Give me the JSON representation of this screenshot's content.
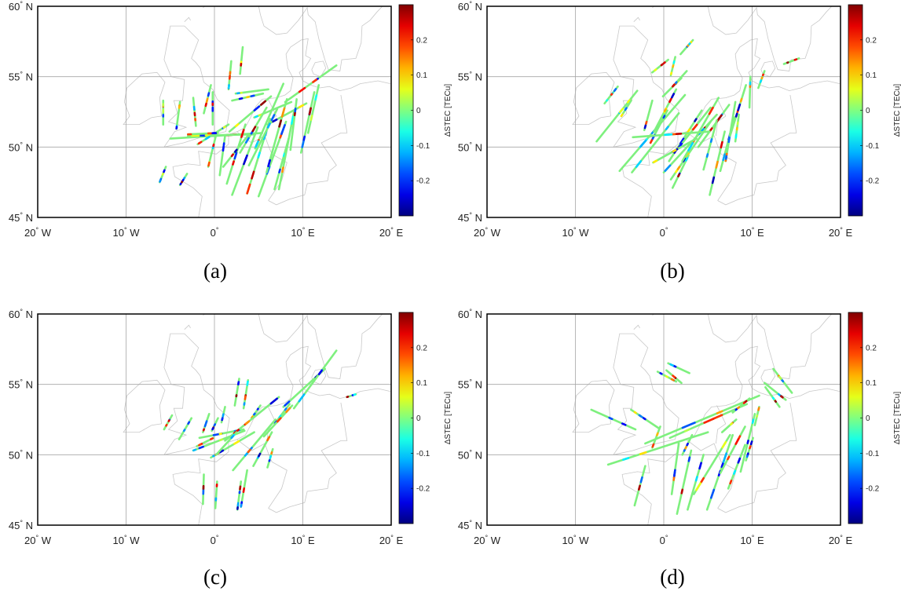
{
  "figure": {
    "x_ticks": [
      {
        "value": -20,
        "label": "20",
        "suffix": "W"
      },
      {
        "value": -10,
        "label": "10",
        "suffix": "W"
      },
      {
        "value": 0,
        "label": "0",
        "suffix": ""
      },
      {
        "value": 10,
        "label": "10",
        "suffix": "E"
      },
      {
        "value": 20,
        "label": "20",
        "suffix": "E"
      }
    ],
    "y_ticks": [
      {
        "value": 45,
        "label": "45",
        "suffix": "N"
      },
      {
        "value": 50,
        "label": "50",
        "suffix": "N"
      },
      {
        "value": 55,
        "label": "55",
        "suffix": "N"
      },
      {
        "value": 60,
        "label": "60",
        "suffix": "N"
      }
    ],
    "degree_symbol": "°",
    "lon_range": [
      -20,
      20
    ],
    "lat_range": [
      45,
      60
    ],
    "colorbar": {
      "label": "ΔSTEC [TECu]",
      "range": [
        -0.3,
        0.3
      ],
      "ticks": [
        {
          "value": 0.2,
          "label": "0.2"
        },
        {
          "value": 0.1,
          "label": "0.1"
        },
        {
          "value": 0,
          "label": "0"
        },
        {
          "value": -0.1,
          "label": "-0.1"
        },
        {
          "value": -0.2,
          "label": "-0.2"
        }
      ],
      "colormap": "jet"
    },
    "colors": {
      "track_base": "#7ef07e",
      "coastline": "#c8c8c8",
      "grid": "#a6a6a6",
      "frame": "#000000"
    }
  },
  "panels": [
    {
      "id": "a",
      "caption": "(a)",
      "tracks": [
        [
          -6.2,
          47.5,
          -5.5,
          48.6
        ],
        [
          -3.9,
          47.3,
          -3.1,
          48.1
        ],
        [
          -5.8,
          51.6,
          -5.8,
          53.3
        ],
        [
          -4.3,
          51.3,
          -3.9,
          53.2
        ],
        [
          -2.1,
          51.5,
          -2.4,
          53.5
        ],
        [
          -1.2,
          52.4,
          -0.4,
          54.4
        ],
        [
          -0.2,
          51.6,
          -0.2,
          53.9
        ],
        [
          1.6,
          54.1,
          1.9,
          56.1
        ],
        [
          2.9,
          55.2,
          3.2,
          57.1
        ],
        [
          -5.0,
          50.6,
          5.4,
          51.0
        ],
        [
          -3.0,
          50.8,
          4.6,
          50.9
        ],
        [
          2.4,
          53.8,
          6.1,
          54.1
        ],
        [
          2.0,
          53.3,
          5.5,
          53.8
        ],
        [
          4.5,
          52.1,
          8.7,
          53.2
        ],
        [
          8.0,
          53.2,
          13.8,
          55.8
        ],
        [
          6.0,
          51.6,
          10.4,
          53.1
        ],
        [
          -1.9,
          50.2,
          1.6,
          51.6
        ],
        [
          0.6,
          48.0,
          1.2,
          50.8
        ],
        [
          -0.7,
          48.6,
          0.2,
          50.9
        ],
        [
          1.4,
          47.4,
          3.5,
          51.6
        ],
        [
          2.0,
          46.6,
          4.9,
          51.4
        ],
        [
          3.7,
          46.7,
          6.3,
          52.0
        ],
        [
          5.0,
          46.5,
          8.1,
          51.8
        ],
        [
          6.8,
          47.0,
          8.4,
          50.6
        ],
        [
          4.6,
          49.9,
          7.8,
          54.5
        ],
        [
          5.9,
          48.2,
          8.2,
          53.4
        ],
        [
          7.3,
          47.0,
          9.0,
          52.5
        ],
        [
          8.6,
          49.8,
          9.3,
          53.4
        ],
        [
          9.8,
          49.6,
          11.3,
          53.9
        ],
        [
          10.6,
          51.0,
          11.8,
          54.4
        ],
        [
          2.9,
          49.6,
          5.9,
          52.8
        ],
        [
          3.9,
          48.7,
          7.1,
          52.7
        ],
        [
          1.7,
          51.1,
          6.4,
          53.6
        ],
        [
          -3.0,
          50.9,
          0.4,
          51.0
        ],
        [
          1.0,
          48.6,
          3.9,
          50.9
        ]
      ]
    },
    {
      "id": "b",
      "caption": "(b)",
      "tracks": [
        [
          -7.6,
          50.4,
          -3.0,
          54.0
        ],
        [
          -5.0,
          48.3,
          2.4,
          53.7
        ],
        [
          -3.6,
          48.2,
          1.7,
          52.4
        ],
        [
          0.0,
          48.2,
          6.0,
          52.3
        ],
        [
          0.6,
          49.0,
          4.3,
          52.6
        ],
        [
          1.6,
          49.9,
          5.3,
          52.8
        ],
        [
          0.8,
          47.7,
          5.3,
          51.8
        ],
        [
          -1.5,
          50.3,
          0.4,
          52.6
        ],
        [
          -2.2,
          51.2,
          -1.3,
          53.3
        ],
        [
          -6.7,
          53.1,
          -5.2,
          54.3
        ],
        [
          -4.8,
          52.2,
          -3.7,
          53.3
        ],
        [
          -1.1,
          51.1,
          1.4,
          54.1
        ],
        [
          -0.1,
          53.6,
          2.0,
          54.9
        ],
        [
          -1.3,
          55.3,
          0.5,
          56.2
        ],
        [
          0.8,
          55.1,
          1.3,
          56.4
        ],
        [
          1.9,
          56.6,
          3.3,
          57.6
        ],
        [
          1.0,
          54.3,
          2.6,
          55.4
        ],
        [
          2.1,
          49.0,
          6.2,
          53.5
        ],
        [
          3.9,
          50.0,
          7.4,
          53.0
        ],
        [
          4.5,
          48.4,
          6.0,
          51.9
        ],
        [
          5.2,
          46.6,
          6.9,
          51.1
        ],
        [
          6.4,
          48.3,
          8.0,
          52.1
        ],
        [
          7.0,
          49.0,
          8.1,
          53.2
        ],
        [
          7.5,
          50.8,
          9.3,
          54.4
        ],
        [
          8.1,
          50.4,
          8.5,
          52.3
        ],
        [
          9.7,
          52.8,
          9.8,
          55.0
        ],
        [
          10.7,
          54.2,
          11.4,
          55.4
        ],
        [
          13.6,
          55.9,
          15.3,
          56.3
        ],
        [
          -3.5,
          50.7,
          5.2,
          51.1
        ],
        [
          -1.2,
          48.9,
          3.7,
          50.6
        ],
        [
          1.0,
          47.1,
          2.8,
          49.4
        ]
      ]
    },
    {
      "id": "c",
      "caption": "(c)",
      "tracks": [
        [
          -5.7,
          51.8,
          -4.8,
          52.8
        ],
        [
          -4.0,
          51.1,
          -2.6,
          52.6
        ],
        [
          -1.3,
          51.6,
          -0.6,
          52.9
        ],
        [
          -0.3,
          51.7,
          0.4,
          52.6
        ],
        [
          0.8,
          52.3,
          1.2,
          53.4
        ],
        [
          2.3,
          53.5,
          2.8,
          55.4
        ],
        [
          3.3,
          53.3,
          3.8,
          55.3
        ],
        [
          4.2,
          52.6,
          5.2,
          53.5
        ],
        [
          6.8,
          52.2,
          8.5,
          53.6
        ],
        [
          7.8,
          53.4,
          12.5,
          56.1
        ],
        [
          9.0,
          53.3,
          13.8,
          57.4
        ],
        [
          15.0,
          54.1,
          16.0,
          54.3
        ],
        [
          -2.4,
          50.3,
          3.4,
          51.7
        ],
        [
          -0.4,
          49.8,
          4.5,
          51.6
        ],
        [
          -1.7,
          51.2,
          3.3,
          51.8
        ],
        [
          2.1,
          48.9,
          6.9,
          52.5
        ],
        [
          1.2,
          51.0,
          7.3,
          54.1
        ],
        [
          5.6,
          51.3,
          8.8,
          53.5
        ],
        [
          4.4,
          49.2,
          6.5,
          51.6
        ],
        [
          6.0,
          49.1,
          6.6,
          50.4
        ],
        [
          2.6,
          46.1,
          3.0,
          48.1
        ],
        [
          3.0,
          46.3,
          3.7,
          48.9
        ],
        [
          -1.3,
          46.5,
          -1.2,
          48.6
        ],
        [
          0.1,
          46.2,
          0.3,
          48.1
        ],
        [
          -2.0,
          50.6,
          -0.1,
          51.2
        ],
        [
          0.2,
          50.0,
          2.5,
          51.6
        ]
      ]
    },
    {
      "id": "d",
      "caption": "(d)",
      "tracks": [
        [
          -8.2,
          53.2,
          -3.2,
          51.8
        ],
        [
          -3.7,
          53.2,
          -0.6,
          51.9
        ],
        [
          0.5,
          56.5,
          2.9,
          55.8
        ],
        [
          0.3,
          56.0,
          2.0,
          55.1
        ],
        [
          -0.7,
          55.9,
          1.4,
          55.2
        ],
        [
          11.4,
          55.1,
          13.8,
          53.9
        ],
        [
          12.4,
          56.1,
          14.5,
          54.4
        ],
        [
          11.5,
          54.8,
          13.1,
          53.4
        ],
        [
          -6.3,
          49.3,
          5.0,
          51.6
        ],
        [
          -2.1,
          50.8,
          10.8,
          54.2
        ],
        [
          0.7,
          51.2,
          9.4,
          53.6
        ],
        [
          -3.3,
          46.4,
          -2.1,
          49.2
        ],
        [
          0.9,
          47.2,
          1.7,
          50.8
        ],
        [
          1.5,
          45.8,
          3.1,
          50.3
        ],
        [
          2.7,
          46.1,
          4.5,
          50.0
        ],
        [
          3.4,
          47.2,
          7.5,
          51.4
        ],
        [
          4.9,
          46.1,
          7.8,
          51.4
        ],
        [
          6.4,
          48.7,
          9.2,
          52.0
        ],
        [
          7.3,
          47.6,
          9.2,
          50.7
        ],
        [
          8.7,
          48.8,
          10.3,
          52.9
        ],
        [
          9.3,
          49.6,
          10.1,
          51.2
        ],
        [
          10.3,
          52.1,
          10.8,
          53.4
        ],
        [
          7.8,
          53.0,
          9.7,
          54.0
        ],
        [
          6.6,
          51.6,
          8.2,
          52.5
        ],
        [
          2.1,
          50.0,
          3.2,
          51.4
        ],
        [
          -1.3,
          50.5,
          -0.4,
          52.0
        ]
      ]
    }
  ]
}
